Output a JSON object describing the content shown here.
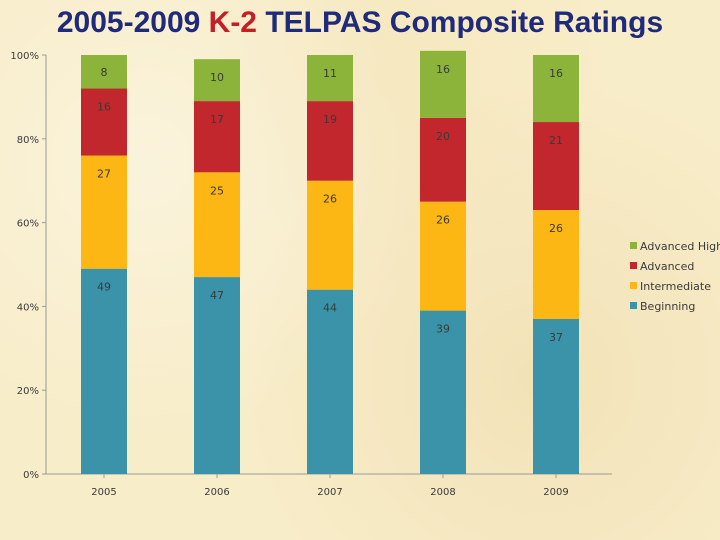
{
  "title": {
    "part1": "2005-2009 ",
    "highlight": "K-2",
    "part2": " TELPAS Composite Ratings",
    "highlight_color": "#c41f25",
    "color": "#1f2a7a"
  },
  "chart_data": {
    "type": "bar",
    "stacked": true,
    "percent": true,
    "categories": [
      "2005",
      "2006",
      "2007",
      "2008",
      "2009"
    ],
    "series": [
      {
        "name": "Beginning",
        "color": "#3b93aa",
        "values": [
          49,
          47,
          44,
          39,
          37
        ]
      },
      {
        "name": "Intermediate",
        "color": "#fdb714",
        "values": [
          27,
          25,
          26,
          26,
          26
        ]
      },
      {
        "name": "Advanced",
        "color": "#c1272d",
        "values": [
          16,
          17,
          19,
          20,
          21
        ]
      },
      {
        "name": "Advanced High",
        "color": "#8cb43a",
        "values": [
          8,
          10,
          11,
          16,
          16
        ]
      }
    ],
    "ylim": [
      0,
      100
    ],
    "yticks": [
      "0%",
      "20%",
      "40%",
      "60%",
      "80%",
      "100%"
    ],
    "legend": [
      "Advanced High",
      "Advanced",
      "Intermediate",
      "Beginning"
    ],
    "legend_position": "right",
    "grid": false
  }
}
